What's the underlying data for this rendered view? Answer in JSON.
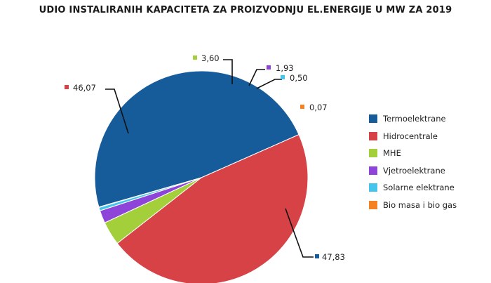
{
  "chart_data": {
    "type": "pie",
    "title": "UDIO INSTALIRANIH KAPACITETA ZA PROIZVODNJU EL.ENERGIJE U MW ZA 2019",
    "legend_position": "right",
    "categories": [
      "Termoelektrane",
      "Hidrocentrale",
      "MHE",
      "Vjetroelektrane",
      "Solarne elektrane",
      "Bio masa i bio gas"
    ],
    "values": [
      47.83,
      46.07,
      3.6,
      1.93,
      0.5,
      0.07
    ],
    "value_labels": [
      "47,83",
      "46,07",
      "3,60",
      "1,93",
      "0,50",
      "0,07"
    ],
    "colors": [
      "#175c9a",
      "#d64245",
      "#a2cf3a",
      "#8e44d8",
      "#43c5ec",
      "#f58220"
    ]
  }
}
